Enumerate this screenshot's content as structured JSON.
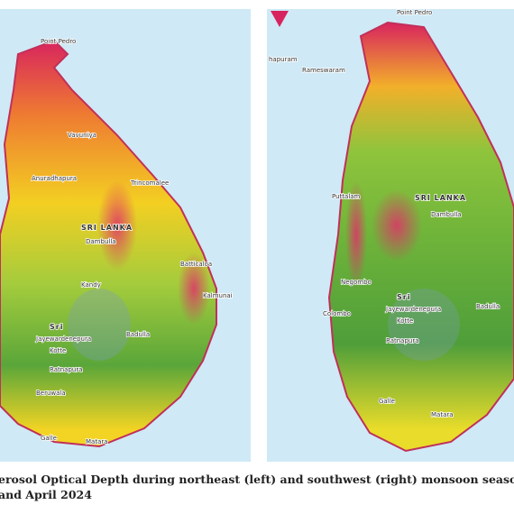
{
  "left_map": {
    "labels": [
      "Point Pedro",
      "Vavuniya",
      "Trincomalee",
      "Anuradhapura",
      "SRI LANKA",
      "Dambulla",
      "Batticaloa",
      "Kalmunai",
      "Kandy",
      "Sri",
      "Jayewardenepura",
      "Kotte",
      "Badulla",
      "Ratnapura",
      "Beruwala",
      "Galle",
      "Matara"
    ]
  },
  "right_map": {
    "labels": [
      "Point Pedro",
      "hapuram",
      "Rameswaram",
      "Puttalam",
      "SRI LANKA",
      "Dambulla",
      "Negombo",
      "Sri",
      "Jayewardenepura",
      "Kotte",
      "Colombo",
      "Badulla",
      "Ratnapura",
      "Galle",
      "Matara"
    ]
  },
  "caption": [
    "erosol Optical Depth during northeast (left) and southwest (right) monsoon seaso",
    "and April 2024"
  ]
}
